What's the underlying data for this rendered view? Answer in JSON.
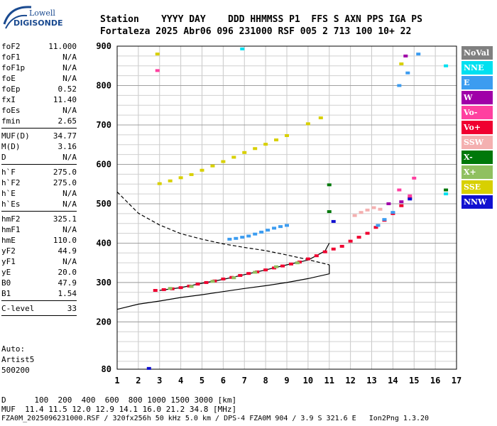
{
  "logo": {
    "line1": "Lowell",
    "line2": "DIGISONDE"
  },
  "header": {
    "row1": "Station    YYYY DAY    DDD HHMMSS P1  FFS S AXN PPS IGA PS",
    "row2": "Fortaleza 2025 Abr06 096 231000 RSF 005 2 713 100 10+ 22"
  },
  "params": {
    "group1": [
      {
        "name": "foF2",
        "value": "11.000"
      },
      {
        "name": "foF1",
        "value": "N/A"
      },
      {
        "name": "foF1p",
        "value": "N/A"
      },
      {
        "name": "foE",
        "value": "N/A"
      },
      {
        "name": "foEp",
        "value": "0.52"
      },
      {
        "name": "fxI",
        "value": "11.40"
      },
      {
        "name": "foEs",
        "value": "N/A"
      },
      {
        "name": "fmin",
        "value": "2.65"
      }
    ],
    "group2": [
      {
        "name": "MUF(D)",
        "value": "34.77"
      },
      {
        "name": "M(D)",
        "value": "3.16"
      },
      {
        "name": "D",
        "value": "N/A"
      }
    ],
    "group3": [
      {
        "name": "h`F",
        "value": "275.0"
      },
      {
        "name": "h`F2",
        "value": "275.0"
      },
      {
        "name": "h`E",
        "value": "N/A"
      },
      {
        "name": "h`Es",
        "value": "N/A"
      }
    ],
    "group4": [
      {
        "name": "hmF2",
        "value": "325.1"
      },
      {
        "name": "hmF1",
        "value": "N/A"
      },
      {
        "name": "hmE",
        "value": "110.0"
      },
      {
        "name": "yF2",
        "value": "44.9"
      },
      {
        "name": "yF1",
        "value": "N/A"
      },
      {
        "name": "yE",
        "value": "20.0"
      },
      {
        "name": "B0",
        "value": "47.9"
      },
      {
        "name": "B1",
        "value": "1.54"
      }
    ],
    "group5": [
      {
        "name": "C-level",
        "value": "33"
      }
    ]
  },
  "auto": {
    "line1": "Auto:",
    "line2": "Artist5",
    "line3": "500200"
  },
  "legend": [
    {
      "label": "NoVal",
      "color": "#808080"
    },
    {
      "label": "NNE",
      "color": "#00e0f0"
    },
    {
      "label": "E",
      "color": "#3c9cf0"
    },
    {
      "label": "W",
      "color": "#a000a8"
    },
    {
      "label": "Vo-",
      "color": "#ff40a0"
    },
    {
      "label": "Vo+",
      "color": "#f00030"
    },
    {
      "label": "SSW",
      "color": "#f4b0b0"
    },
    {
      "label": "X-",
      "color": "#00780a"
    },
    {
      "label": "X+",
      "color": "#90c060"
    },
    {
      "label": "SSE",
      "color": "#d8d000"
    },
    {
      "label": "NNW",
      "color": "#1010d0"
    }
  ],
  "bottom": {
    "d_row": "D      100  200  400  600  800 1000 1500 3000 [km]",
    "muf_row": "MUF  11.4 11.5 12.0 12.9 14.1 16.0 21.2 34.8 [MHz]",
    "file_row": "FZA0M_2025096231000.RSF / 320fx256h 50 kHz 5.0 km / DPS-4 FZA0M 904 / 3.9 S 321.6 E   Ion2Png 1.3.20"
  },
  "chart_data": {
    "type": "scatter",
    "title": "",
    "xlabel": "",
    "ylabel": "",
    "xlim": [
      1,
      17
    ],
    "ylim": [
      80,
      900
    ],
    "x_ticks": [
      1,
      2,
      3,
      4,
      5,
      6,
      7,
      8,
      9,
      10,
      11,
      12,
      13,
      14,
      15,
      16,
      17
    ],
    "y_ticks": [
      80,
      200,
      300,
      400,
      500,
      600,
      700,
      800,
      900
    ],
    "grid": true,
    "series": [
      {
        "name": "Vo+",
        "color": "#f00030",
        "points": [
          [
            2.8,
            280
          ],
          [
            3.2,
            282
          ],
          [
            3.6,
            284
          ],
          [
            4.0,
            287
          ],
          [
            4.4,
            291
          ],
          [
            4.8,
            296
          ],
          [
            5.2,
            300
          ],
          [
            5.6,
            304
          ],
          [
            6.0,
            309
          ],
          [
            6.4,
            313
          ],
          [
            6.8,
            318
          ],
          [
            7.2,
            323
          ],
          [
            7.6,
            327
          ],
          [
            8.0,
            332
          ],
          [
            8.4,
            337
          ],
          [
            8.8,
            342
          ],
          [
            9.2,
            347
          ],
          [
            9.6,
            352
          ],
          [
            10.0,
            360
          ],
          [
            10.4,
            368
          ],
          [
            10.8,
            378
          ],
          [
            11.2,
            385
          ],
          [
            11.6,
            392
          ],
          [
            12.0,
            405
          ],
          [
            12.4,
            415
          ],
          [
            12.8,
            425
          ],
          [
            13.2,
            440
          ],
          [
            13.6,
            458
          ],
          [
            14.0,
            475
          ],
          [
            14.4,
            495
          ],
          [
            14.8,
            515
          ]
        ]
      },
      {
        "name": "E",
        "color": "#3c9cf0",
        "points": [
          [
            6.3,
            410
          ],
          [
            6.6,
            412
          ],
          [
            6.9,
            415
          ],
          [
            7.2,
            418
          ],
          [
            7.5,
            423
          ],
          [
            7.8,
            428
          ],
          [
            8.1,
            433
          ],
          [
            8.4,
            438
          ],
          [
            8.7,
            442
          ],
          [
            9.0,
            445
          ],
          [
            13.3,
            445
          ],
          [
            13.6,
            460
          ],
          [
            14.0,
            478
          ],
          [
            14.3,
            800
          ],
          [
            14.7,
            832
          ],
          [
            15.2,
            880
          ]
        ]
      },
      {
        "name": "SSE",
        "color": "#d8d000",
        "points": [
          [
            3.0,
            551
          ],
          [
            3.5,
            558
          ],
          [
            4.0,
            566
          ],
          [
            4.5,
            574
          ],
          [
            5.0,
            585
          ],
          [
            5.5,
            596
          ],
          [
            6.0,
            607
          ],
          [
            6.5,
            618
          ],
          [
            7.0,
            630
          ],
          [
            7.5,
            640
          ],
          [
            8.0,
            651
          ],
          [
            8.5,
            662
          ],
          [
            9.0,
            673
          ],
          [
            10.0,
            703
          ],
          [
            10.6,
            718
          ],
          [
            2.9,
            880
          ],
          [
            14.4,
            855
          ]
        ]
      },
      {
        "name": "SSW",
        "color": "#f4b0b0",
        "points": [
          [
            12.2,
            470
          ],
          [
            12.5,
            478
          ],
          [
            12.8,
            484
          ],
          [
            13.1,
            490
          ],
          [
            13.4,
            486
          ]
        ]
      },
      {
        "name": "X+",
        "color": "#90c060",
        "points": [
          [
            3.5,
            285
          ],
          [
            4.5,
            290
          ],
          [
            5.5,
            303
          ],
          [
            6.5,
            312
          ],
          [
            7.5,
            326
          ],
          [
            8.5,
            340
          ],
          [
            9.5,
            350
          ]
        ]
      },
      {
        "name": "X-",
        "color": "#00780a",
        "points": [
          [
            11.0,
            548
          ],
          [
            11.0,
            480
          ],
          [
            16.5,
            535
          ]
        ]
      },
      {
        "name": "W",
        "color": "#a000a8",
        "points": [
          [
            14.4,
            505
          ],
          [
            14.6,
            875
          ],
          [
            13.8,
            500
          ]
        ]
      },
      {
        "name": "NNE",
        "color": "#00e0f0",
        "points": [
          [
            6.9,
            893
          ],
          [
            16.5,
            850
          ],
          [
            16.5,
            525
          ]
        ]
      },
      {
        "name": "Vo-",
        "color": "#ff40a0",
        "points": [
          [
            14.8,
            520
          ],
          [
            15.0,
            565
          ],
          [
            14.3,
            535
          ],
          [
            2.9,
            838
          ]
        ]
      },
      {
        "name": "NNW",
        "color": "#1010d0",
        "points": [
          [
            2.5,
            82
          ],
          [
            11.2,
            455
          ],
          [
            14.8,
            512
          ]
        ]
      }
    ],
    "profile_curves": [
      {
        "style": "dashed",
        "points": [
          [
            1,
            530
          ],
          [
            2,
            476
          ],
          [
            3,
            446
          ],
          [
            4,
            424
          ],
          [
            5,
            410
          ],
          [
            6,
            398
          ],
          [
            7,
            389
          ],
          [
            8,
            381
          ],
          [
            9,
            370
          ],
          [
            10,
            358
          ],
          [
            11,
            345
          ]
        ]
      },
      {
        "style": "solid",
        "points": [
          [
            1,
            232
          ],
          [
            2,
            245
          ],
          [
            3,
            253
          ],
          [
            4,
            262
          ],
          [
            5,
            269
          ],
          [
            6,
            277
          ],
          [
            7,
            285
          ],
          [
            8,
            292
          ],
          [
            9,
            300
          ],
          [
            10,
            310
          ],
          [
            11,
            322
          ],
          [
            11,
            345
          ]
        ]
      },
      {
        "style": "solid",
        "points": [
          [
            3.0,
            280
          ],
          [
            4.0,
            287
          ],
          [
            5.0,
            298
          ],
          [
            6.0,
            308
          ],
          [
            7.0,
            320
          ],
          [
            8.0,
            332
          ],
          [
            9.0,
            345
          ],
          [
            10.0,
            357
          ],
          [
            10.8,
            380
          ],
          [
            11.0,
            400
          ]
        ]
      }
    ]
  }
}
